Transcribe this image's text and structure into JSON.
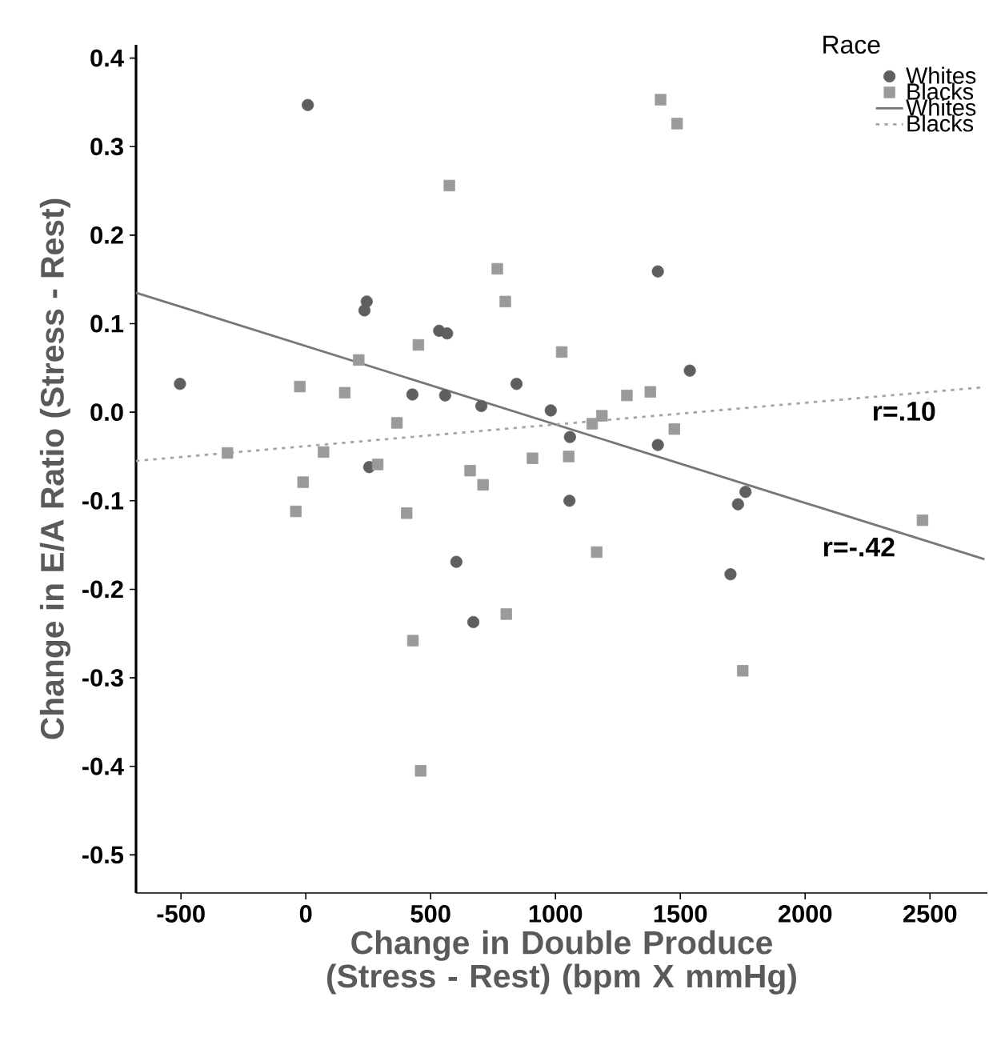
{
  "chart_data": {
    "type": "scatter",
    "xlabel": "Change in Double Produce (Stress - Rest) (bpm X mmHg)",
    "ylabel": "Change in E/A Ratio (Stress - Rest)",
    "legend_title": "Race",
    "legend": "top right",
    "xlim": [
      -680,
      2730
    ],
    "ylim": [
      -0.543,
      0.415
    ],
    "xticks": [
      -500,
      0,
      500,
      1000,
      1500,
      2000,
      2500
    ],
    "yticks": [
      0.4,
      0.3,
      0.2,
      0.1,
      {
        "value": 0,
        "label": "0.0"
      },
      -0.1,
      -0.2,
      -0.3,
      -0.4,
      -0.5
    ],
    "series": [
      {
        "name": "Whites",
        "marker": "circle",
        "color": "#5f5f5f",
        "x": [
          8,
          244,
          235,
          534,
          566,
          -504,
          427,
          558,
          703,
          844,
          981,
          1410,
          1538,
          1058,
          1410,
          254,
          603,
          671,
          1056,
          1761,
          1731,
          1701
        ],
        "values": [
          0.347,
          0.125,
          0.115,
          0.092,
          0.089,
          0.032,
          0.02,
          0.019,
          0.007,
          0.032,
          0.002,
          0.159,
          0.047,
          -0.028,
          -0.037,
          -0.062,
          -0.169,
          -0.237,
          -0.1,
          -0.09,
          -0.104,
          -0.183
        ]
      },
      {
        "name": "Blacks",
        "marker": "square",
        "color": "#9a9a9a",
        "x": [
          575,
          767,
          799,
          451,
          212,
          1025,
          -24,
          156,
          365,
          -314,
          71,
          908,
          1421,
          1487,
          1286,
          1380,
          1186,
          1147,
          1476,
          1053,
          -11,
          -40,
          288,
          658,
          710,
          404,
          803,
          429,
          460,
          1165,
          2470,
          1750
        ],
        "values": [
          0.256,
          0.162,
          0.125,
          0.076,
          0.059,
          0.068,
          0.029,
          0.022,
          -0.012,
          -0.046,
          -0.045,
          -0.052,
          0.353,
          0.326,
          0.019,
          0.023,
          -0.004,
          -0.013,
          -0.019,
          -0.05,
          -0.079,
          -0.112,
          -0.059,
          -0.066,
          -0.082,
          -0.114,
          -0.228,
          -0.258,
          -0.405,
          -0.158,
          -0.122,
          -0.292
        ]
      },
      {
        "name": "Whites",
        "type": "line",
        "marker": "none",
        "line_style": "solid",
        "color": "#777777",
        "x": [
          -680,
          2718
        ],
        "values": [
          0.135,
          -0.166
        ]
      },
      {
        "name": "Blacks",
        "type": "line",
        "marker": "none",
        "line_style": "dotted",
        "color": "#a5a5a5",
        "x": [
          -680,
          2707
        ],
        "values": [
          -0.055,
          0.028
        ]
      }
    ],
    "annotations": [
      "r=.10",
      "r=-.42"
    ]
  }
}
